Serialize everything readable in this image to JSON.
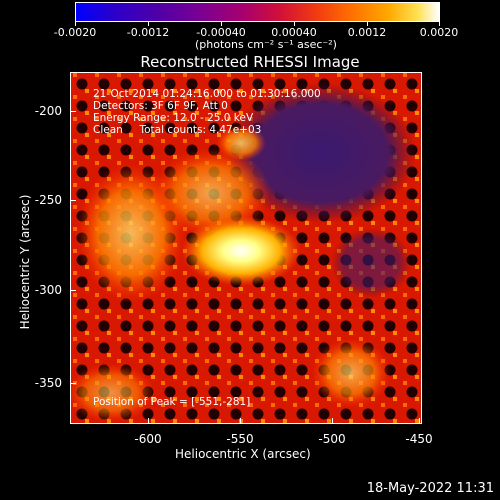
{
  "colorbar": {
    "ticks": [
      "-0.0020",
      "-0.0012",
      "-0.00040",
      "0.00040",
      "0.0012",
      "0.0020"
    ],
    "unit_label": "(photons cm⁻² s⁻¹ asec⁻²)"
  },
  "plot": {
    "title": "Reconstructed RHESSI Image",
    "annotations": [
      "21-Oct-2014 01:24:16.000 to 01:30:16.000",
      "Detectors: 3F 6F 9F, Att 0",
      "Energy Range: 12.0 - 25.0 keV",
      "Clean     Total counts: 4.47e+03"
    ],
    "peak_label": "Position of Peak = [-551,-281]",
    "x_axis": {
      "title": "Heliocentric X (arcsec)",
      "ticks": [
        "-600",
        "-550",
        "-500",
        "-450"
      ]
    },
    "y_axis": {
      "title": "Heliocentric Y (arcsec)",
      "ticks": [
        "-200",
        "-250",
        "-300",
        "-350"
      ]
    }
  },
  "footer": {
    "datestamp": "18-May-2022 11:31"
  }
}
